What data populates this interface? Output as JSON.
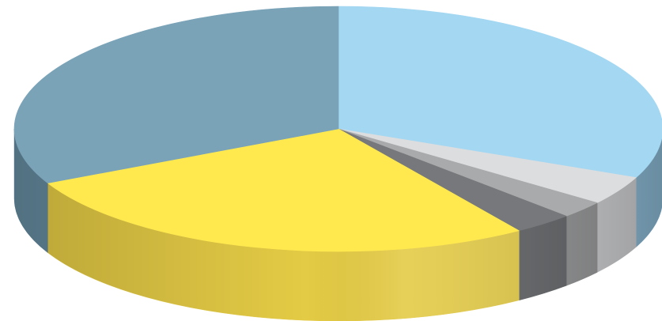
{
  "chart_data": {
    "type": "pie",
    "style": "3d",
    "title": "",
    "legend": "none",
    "data_labels": "none",
    "start_angle_deg": -90,
    "direction": "clockwise",
    "slices": [
      {
        "value": 31.5,
        "color": "#A3D7F2",
        "side_color": "#87B4CF"
      },
      {
        "value": 3.8,
        "color": "#DCDDDF",
        "side_color": "#C7C8CA"
      },
      {
        "value": 2.3,
        "color": "#A9AAAB",
        "side_color": "#8E8F90"
      },
      {
        "value": 3.0,
        "color": "#76787B",
        "side_color": "#5E6063"
      },
      {
        "value": 27.1,
        "color": "#FFE94F",
        "side_color": "#E4CB45"
      },
      {
        "value": 32.3,
        "color": "#7AA3B8",
        "side_color": "#648A9E"
      }
    ]
  }
}
